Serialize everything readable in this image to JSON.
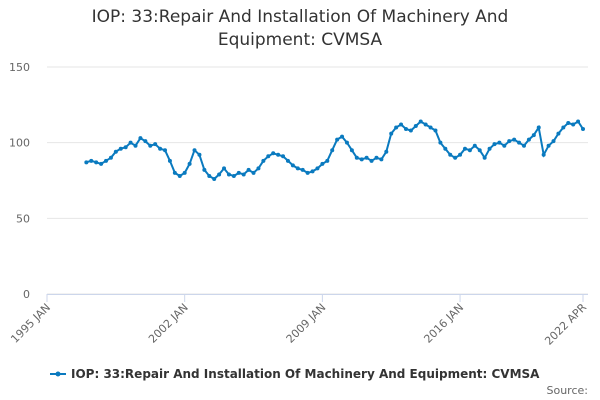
{
  "chart_data": {
    "type": "line",
    "title": "IOP: 33:Repair And Installation Of Machinery And Equipment: CVMSA",
    "x": [
      "1997-01",
      "1997-04",
      "1997-07",
      "1997-10",
      "1998-01",
      "1998-04",
      "1998-07",
      "1998-10",
      "1999-01",
      "1999-04",
      "1999-07",
      "1999-10",
      "2000-01",
      "2000-04",
      "2000-07",
      "2000-10",
      "2001-01",
      "2001-04",
      "2001-07",
      "2001-10",
      "2002-01",
      "2002-04",
      "2002-07",
      "2002-10",
      "2003-01",
      "2003-04",
      "2003-07",
      "2003-10",
      "2004-01",
      "2004-04",
      "2004-07",
      "2004-10",
      "2005-01",
      "2005-04",
      "2005-07",
      "2005-10",
      "2006-01",
      "2006-04",
      "2006-07",
      "2006-10",
      "2007-01",
      "2007-04",
      "2007-07",
      "2007-10",
      "2008-01",
      "2008-04",
      "2008-07",
      "2008-10",
      "2009-01",
      "2009-04",
      "2009-07",
      "2009-10",
      "2010-01",
      "2010-04",
      "2010-07",
      "2010-10",
      "2011-01",
      "2011-04",
      "2011-07",
      "2011-10",
      "2012-01",
      "2012-04",
      "2012-07",
      "2012-10",
      "2013-01",
      "2013-04",
      "2013-07",
      "2013-10",
      "2014-01",
      "2014-04",
      "2014-07",
      "2014-10",
      "2015-01",
      "2015-04",
      "2015-07",
      "2015-10",
      "2016-01",
      "2016-04",
      "2016-07",
      "2016-10",
      "2017-01",
      "2017-04",
      "2017-07",
      "2017-10",
      "2018-01",
      "2018-04",
      "2018-07",
      "2018-10",
      "2019-01",
      "2019-04",
      "2019-07",
      "2019-10",
      "2020-01",
      "2020-04",
      "2020-07",
      "2020-10",
      "2021-01",
      "2021-04",
      "2021-07",
      "2021-10",
      "2022-01",
      "2022-04"
    ],
    "series": [
      {
        "name": "IOP: 33:Repair And Installation Of Machinery And Equipment: CVMSA",
        "color": "#0a7abf",
        "values": [
          87,
          88,
          87,
          86,
          88,
          90,
          94,
          96,
          97,
          100,
          98,
          103,
          101,
          98,
          99,
          96,
          95,
          88,
          80,
          78,
          80,
          86,
          95,
          92,
          82,
          78,
          76,
          79,
          83,
          79,
          78,
          80,
          79,
          82,
          80,
          83,
          88,
          91,
          93,
          92,
          91,
          88,
          85,
          83,
          82,
          80,
          81,
          83,
          86,
          88,
          95,
          102,
          104,
          100,
          95,
          90,
          89,
          90,
          88,
          90,
          89,
          94,
          106,
          110,
          112,
          109,
          108,
          111,
          114,
          112,
          110,
          108,
          100,
          96,
          92,
          90,
          92,
          96,
          95,
          98,
          95,
          90,
          96,
          99,
          100,
          98,
          101,
          102,
          100,
          98,
          102,
          105,
          110,
          92,
          98,
          101,
          106,
          110,
          113,
          112,
          114,
          109
        ]
      }
    ],
    "xlim": [
      "1995-01",
      "2022-04"
    ],
    "xticks": [
      {
        "value": "1995-01",
        "label": "1995 JAN"
      },
      {
        "value": "2002-01",
        "label": "2002 JAN"
      },
      {
        "value": "2009-01",
        "label": "2009 JAN"
      },
      {
        "value": "2016-01",
        "label": "2016 JAN"
      },
      {
        "value": "2022-04",
        "label": "2022 APR"
      }
    ],
    "ylim": [
      0,
      150
    ],
    "yticks": [
      0,
      50,
      100,
      150
    ],
    "grid": true,
    "source": "Source:"
  }
}
